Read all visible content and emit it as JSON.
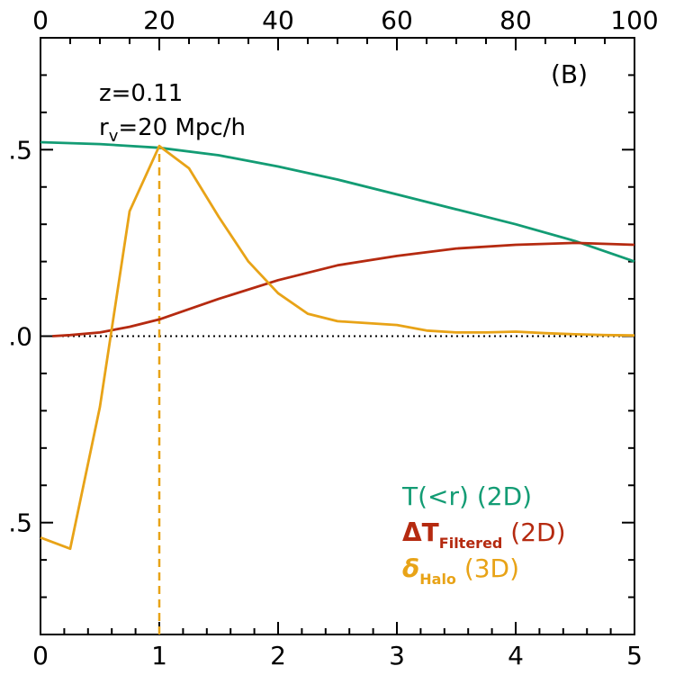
{
  "chart_data": {
    "type": "line",
    "panel_label": "(B)",
    "annotations": {
      "redshift": "z=0.11",
      "radius_main": "r",
      "radius_sub": "v",
      "radius_rest": "=20 Mpc/h"
    },
    "x_bottom": {
      "range": [
        0,
        5
      ],
      "ticks": [
        0,
        1,
        2,
        3,
        4,
        5
      ],
      "tick_labels": [
        "0",
        "1",
        "2",
        "3",
        "4",
        "5"
      ]
    },
    "x_top": {
      "range": [
        0,
        100
      ],
      "ticks": [
        0,
        20,
        40,
        60,
        80,
        100
      ],
      "tick_labels": [
        "0",
        "20",
        "40",
        "60",
        "80",
        "100"
      ]
    },
    "y": {
      "range": [
        -0.8,
        0.8
      ],
      "ticks": [
        -0.5,
        0.0,
        0.5
      ],
      "tick_labels": [
        ".5",
        ".0",
        ".5"
      ]
    },
    "reference_lines": [
      {
        "kind": "horizontal",
        "y": 0.0,
        "style": "dotted",
        "color": "#000000"
      },
      {
        "kind": "vertical",
        "x": 1.0,
        "style": "dashed",
        "color": "#E8A317"
      }
    ],
    "series": [
      {
        "legend_main": "T(<r)",
        "legend_sub": "",
        "legend_suffix": " (2D)",
        "color": "#139C74",
        "x": [
          0,
          0.5,
          1,
          1.5,
          2,
          2.5,
          3,
          3.5,
          4,
          4.5,
          5
        ],
        "y": [
          0.52,
          0.515,
          0.505,
          0.485,
          0.455,
          0.42,
          0.38,
          0.34,
          0.3,
          0.255,
          0.2
        ]
      },
      {
        "legend_main": "ΔT",
        "legend_sub": "Filtered",
        "legend_suffix": " (2D)",
        "color": "#B52A10",
        "x": [
          0.1,
          0.25,
          0.5,
          0.75,
          1,
          1.5,
          2,
          2.5,
          3,
          3.5,
          4,
          4.5,
          5
        ],
        "y": [
          0.0,
          0.003,
          0.01,
          0.025,
          0.045,
          0.1,
          0.15,
          0.19,
          0.215,
          0.235,
          0.245,
          0.25,
          0.245
        ]
      },
      {
        "legend_main": "δ",
        "legend_sub": "Halo",
        "legend_suffix": " (3D)",
        "color": "#E8A317",
        "x": [
          0,
          0.25,
          0.5,
          0.75,
          1,
          1.25,
          1.5,
          1.75,
          2,
          2.25,
          2.5,
          2.75,
          3,
          3.25,
          3.5,
          3.75,
          4,
          4.25,
          4.5,
          4.75,
          5
        ],
        "y": [
          -0.54,
          -0.57,
          -0.19,
          0.335,
          0.51,
          0.45,
          0.32,
          0.2,
          0.115,
          0.06,
          0.04,
          0.035,
          0.03,
          0.015,
          0.01,
          0.01,
          0.012,
          0.008,
          0.005,
          0.003,
          0.002
        ]
      }
    ]
  }
}
